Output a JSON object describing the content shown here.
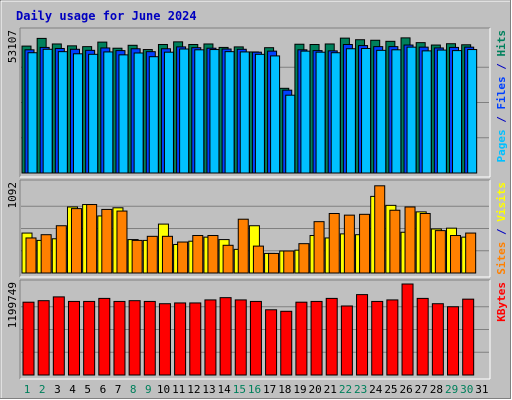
{
  "chart_data": {
    "type": "bar",
    "title": "Daily usage for June 2024",
    "days": [
      "1",
      "2",
      "3",
      "4",
      "5",
      "6",
      "7",
      "8",
      "9",
      "10",
      "11",
      "12",
      "13",
      "14",
      "15",
      "16",
      "17",
      "18",
      "19",
      "20",
      "21",
      "22",
      "23",
      "24",
      "25",
      "26",
      "27",
      "28",
      "29",
      "30",
      "31"
    ],
    "weekend_days": [
      "1",
      "2",
      "8",
      "9",
      "15",
      "16",
      "22",
      "23",
      "29",
      "30"
    ],
    "panels": [
      {
        "name": "hits-files-pages",
        "ymax": 53107,
        "ymax_label": "53107",
        "right_labels": [
          {
            "text": "Pages",
            "color": "#00c0ff"
          },
          {
            "text": " / ",
            "color": "#0000c0"
          },
          {
            "text": "Files",
            "color": "#0040ff"
          },
          {
            "text": " / ",
            "color": "#0000c0"
          },
          {
            "text": "Hits",
            "color": "#00805c"
          }
        ],
        "series": [
          {
            "name": "Hits",
            "color": "#00805c",
            "values": [
              47800,
              50700,
              48600,
              47900,
              47600,
              49300,
              47000,
              48100,
              46500,
              48400,
              49400,
              48400,
              48600,
              47300,
              47500,
              45600,
              47200,
              31900,
              48500,
              48400,
              48600,
              50800,
              50200,
              50000,
              49600,
              50900,
              49100,
              48200,
              48700,
              48300,
              0
            ]
          },
          {
            "name": "Files",
            "color": "#0040ff",
            "values": [
              46400,
              47300,
              46900,
              46600,
              46200,
              47100,
              46100,
              46800,
              45700,
              46800,
              47500,
              47200,
              47000,
              46700,
              46600,
              45500,
              45900,
              31200,
              46400,
              46100,
              46000,
              48400,
              48000,
              47600,
              47600,
              48200,
              47400,
              47100,
              47300,
              47400,
              0
            ]
          },
          {
            "name": "Pages",
            "color": "#00c0ff",
            "values": [
              45300,
              46600,
              45700,
              44900,
              44700,
              45600,
              44500,
              45200,
              43800,
              45500,
              46700,
              46400,
              46500,
              45700,
              45600,
              44700,
              44100,
              29300,
              45900,
              45500,
              45300,
              46800,
              46900,
              46200,
              46400,
              47400,
              46000,
              46300,
              46100,
              46500,
              0
            ]
          }
        ]
      },
      {
        "name": "visits-sites",
        "ymax": 1092,
        "ymax_label": "1092",
        "right_labels": [
          {
            "text": "Sites",
            "color": "#ff8000"
          },
          {
            "text": " / ",
            "color": "#0000c0"
          },
          {
            "text": "Visits",
            "color": "#ffff00"
          }
        ],
        "series": [
          {
            "name": "Visits",
            "color": "#ffff00",
            "values": [
              490,
              400,
              420,
              810,
              840,
              700,
              800,
              410,
              400,
              600,
              350,
              390,
              440,
              410,
              290,
              580,
              240,
              270,
              280,
              460,
              430,
              480,
              470,
              940,
              830,
              500,
              750,
              540,
              550,
              440,
              0
            ]
          },
          {
            "name": "Sites",
            "color": "#ff8000",
            "values": [
              430,
              470,
              580,
              790,
              840,
              780,
              760,
              400,
              450,
              450,
              380,
              460,
              460,
              340,
              660,
              330,
              240,
              270,
              360,
              630,
              730,
              710,
              720,
              1070,
              770,
              810,
              730,
              520,
              460,
              490,
              0
            ]
          }
        ]
      },
      {
        "name": "kbytes",
        "ymax": 1199749,
        "ymax_label": "1199749",
        "right_labels": [
          {
            "text": "KBytes",
            "color": "#ff0000"
          }
        ],
        "series": [
          {
            "name": "KBytes",
            "color": "#ff0000",
            "values": [
              960000,
              980000,
              1030000,
              970000,
              970000,
              1010000,
              970000,
              980000,
              970000,
              940000,
              950000,
              950000,
              990000,
              1020000,
              990000,
              970000,
              860000,
              840000,
              960000,
              970000,
              1010000,
              910000,
              1060000,
              970000,
              990000,
              1199749,
              1010000,
              940000,
              900000,
              1000000,
              0
            ]
          }
        ]
      }
    ]
  },
  "colors": {
    "background": "#ffffff",
    "frame": "#c0c0c0",
    "plot_bg": "#c0c0c0",
    "title_text": "#0000c0",
    "weekday_label": "#0000c0",
    "weekend_label": "#00805c",
    "axis_text": "#000000"
  }
}
